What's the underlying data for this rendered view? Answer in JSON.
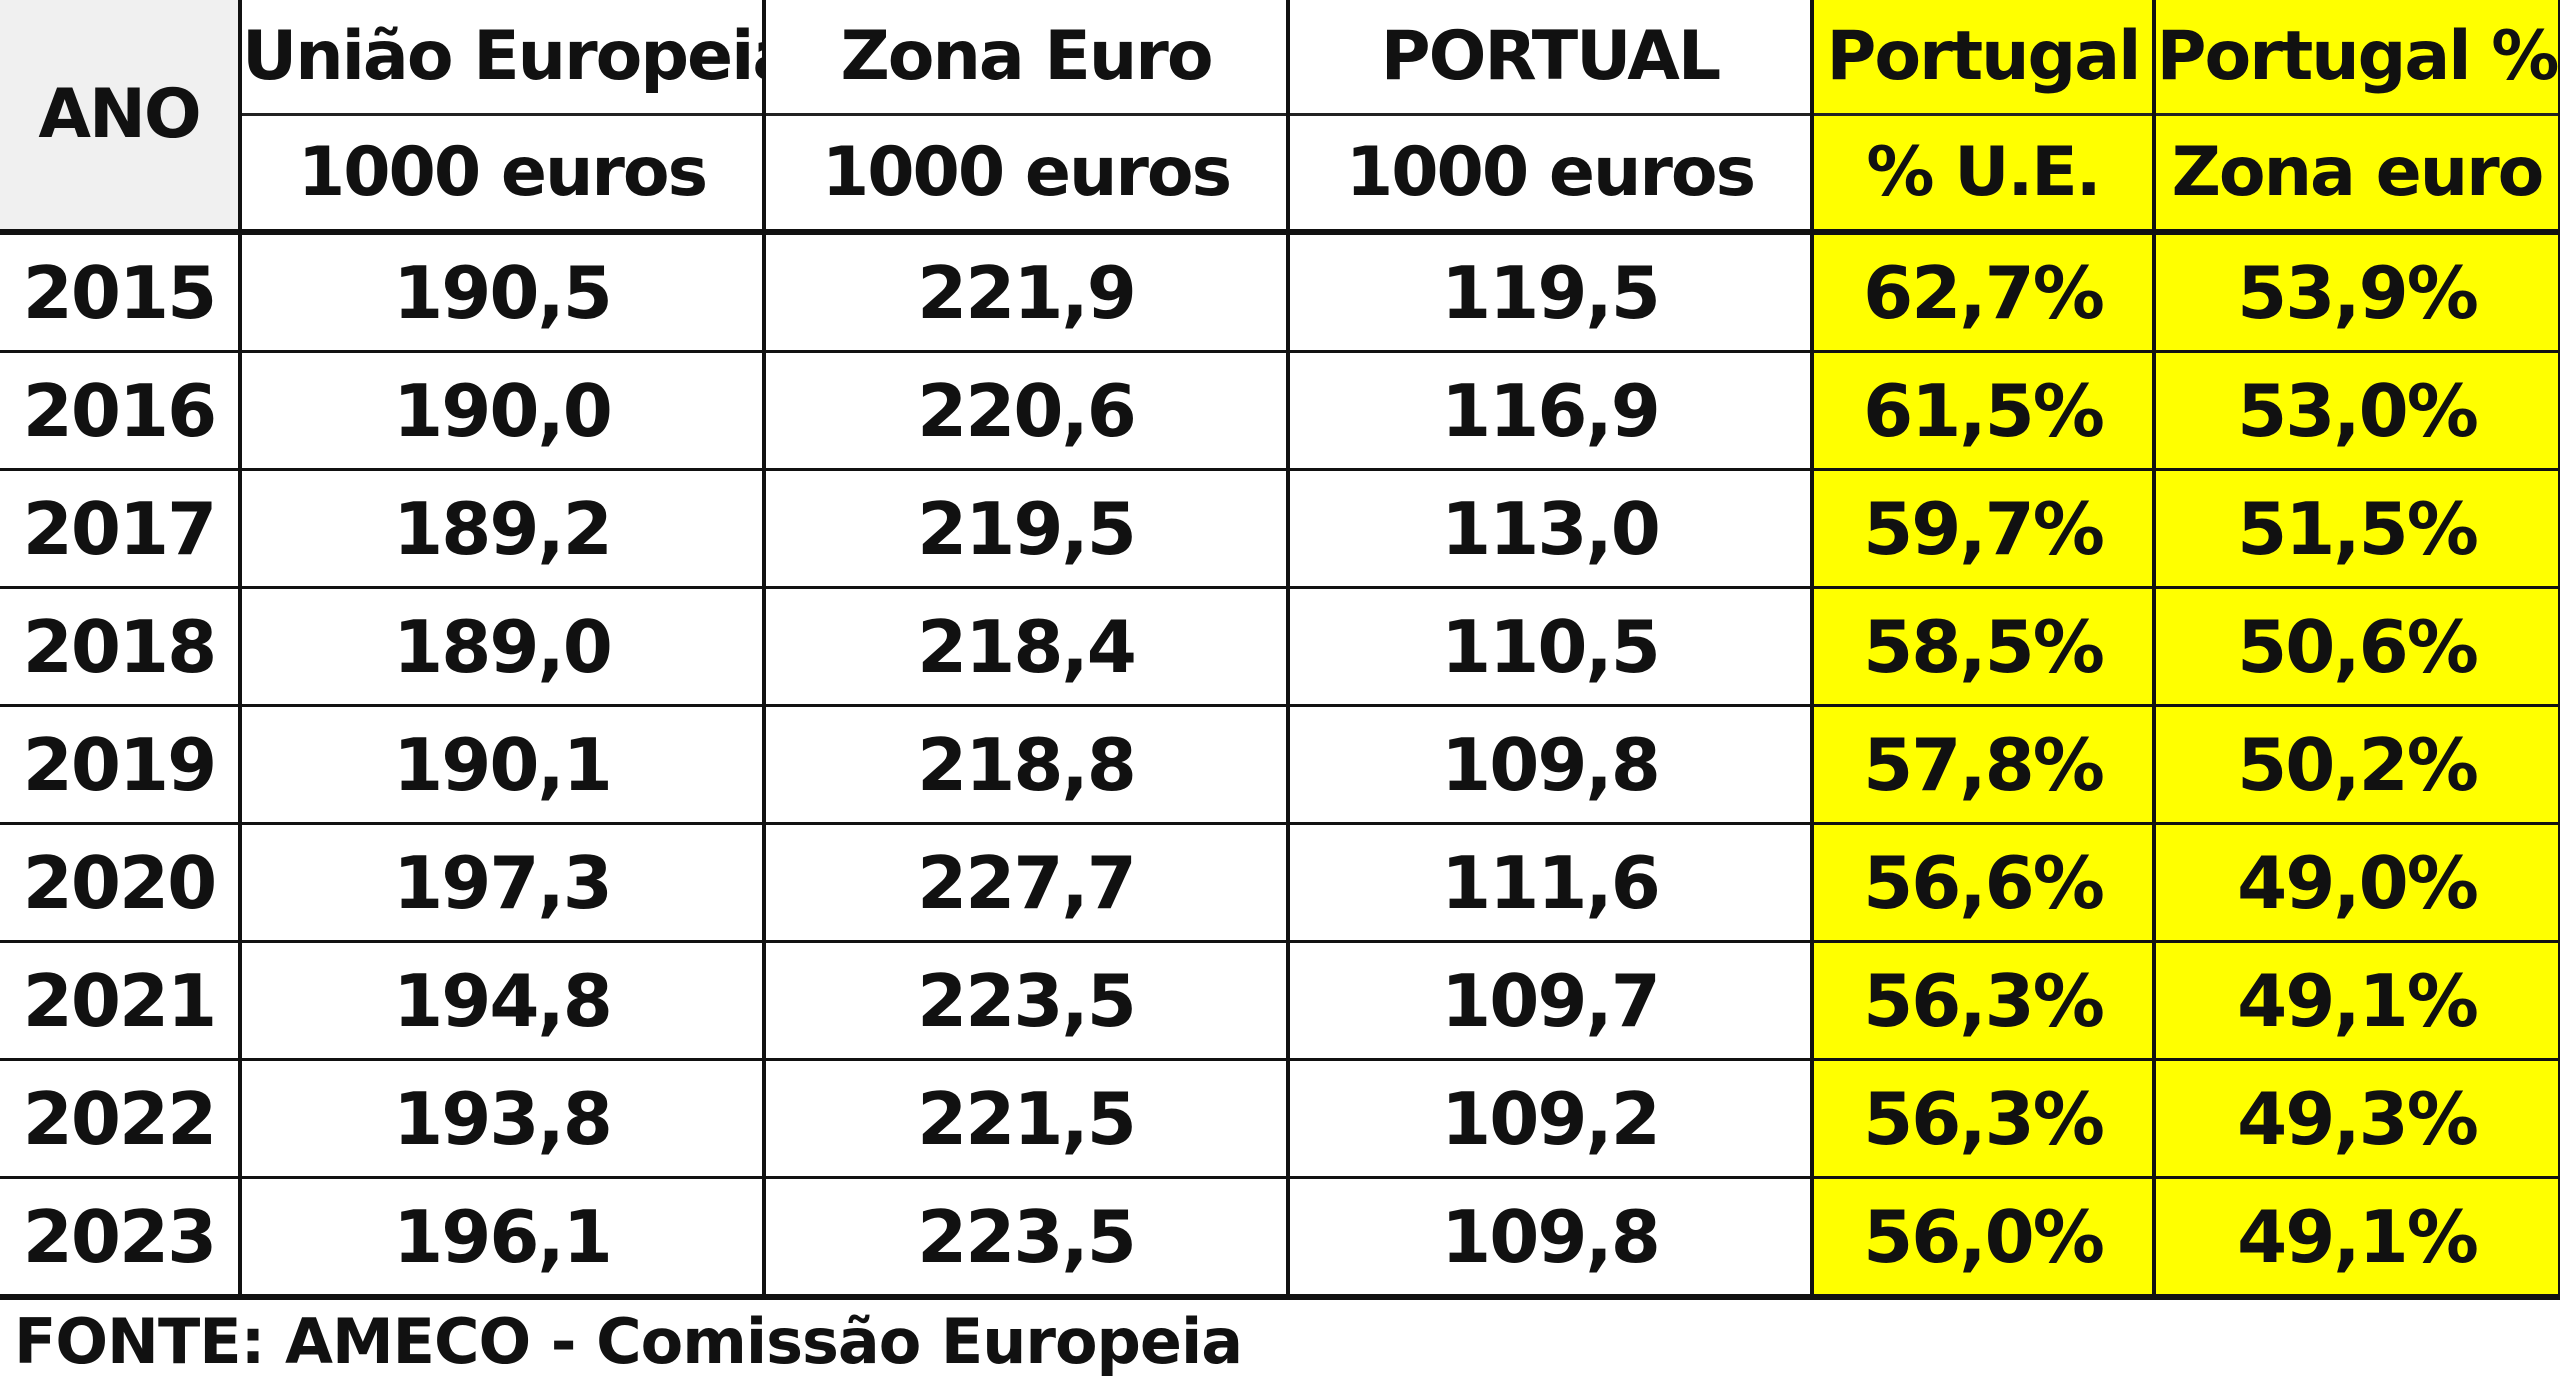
{
  "header": {
    "year_label": "ANO",
    "columns": [
      {
        "title": "União Europeia",
        "subtitle": "1000 euros"
      },
      {
        "title": "Zona Euro",
        "subtitle": "1000 euros"
      },
      {
        "title": "PORTUAL",
        "subtitle": "1000 euros"
      },
      {
        "title": "Portugal",
        "subtitle": "% U.E."
      },
      {
        "title": "Portugal %",
        "subtitle": "Zona euro"
      }
    ]
  },
  "rows": [
    {
      "year": "2015",
      "eu": "190,5",
      "euro_zone": "221,9",
      "portugal": "119,5",
      "pct_eu": "62,7%",
      "pct_euro_zone": "53,9%"
    },
    {
      "year": "2016",
      "eu": "190,0",
      "euro_zone": "220,6",
      "portugal": "116,9",
      "pct_eu": "61,5%",
      "pct_euro_zone": "53,0%"
    },
    {
      "year": "2017",
      "eu": "189,2",
      "euro_zone": "219,5",
      "portugal": "113,0",
      "pct_eu": "59,7%",
      "pct_euro_zone": "51,5%"
    },
    {
      "year": "2018",
      "eu": "189,0",
      "euro_zone": "218,4",
      "portugal": "110,5",
      "pct_eu": "58,5%",
      "pct_euro_zone": "50,6%"
    },
    {
      "year": "2019",
      "eu": "190,1",
      "euro_zone": "218,8",
      "portugal": "109,8",
      "pct_eu": "57,8%",
      "pct_euro_zone": "50,2%"
    },
    {
      "year": "2020",
      "eu": "197,3",
      "euro_zone": "227,7",
      "portugal": "111,6",
      "pct_eu": "56,6%",
      "pct_euro_zone": "49,0%"
    },
    {
      "year": "2021",
      "eu": "194,8",
      "euro_zone": "223,5",
      "portugal": "109,7",
      "pct_eu": "56,3%",
      "pct_euro_zone": "49,1%"
    },
    {
      "year": "2022",
      "eu": "193,8",
      "euro_zone": "221,5",
      "portugal": "109,2",
      "pct_eu": "56,3%",
      "pct_euro_zone": "49,3%"
    },
    {
      "year": "2023",
      "eu": "196,1",
      "euro_zone": "223,5",
      "portugal": "109,8",
      "pct_eu": "56,0%",
      "pct_euro_zone": "49,1%"
    }
  ],
  "source": "FONTE: AMECO - Comissão Europeia",
  "colors": {
    "highlight": "#ffff00",
    "year_header_bg": "#f0f0f0"
  }
}
